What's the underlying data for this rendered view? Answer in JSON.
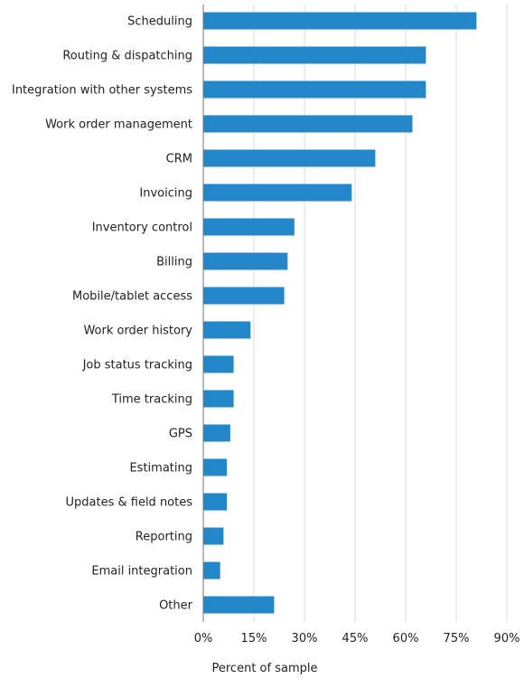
{
  "chart_data": {
    "type": "bar",
    "orientation": "horizontal",
    "categories": [
      "Scheduling",
      "Routing & dispatching",
      "Integration with other systems",
      "Work order management",
      "CRM",
      "Invoicing",
      "Inventory control",
      "Billing",
      "Mobile/tablet access",
      "Work order history",
      "Job status tracking",
      "Time tracking",
      "GPS",
      "Estimating",
      "Updates & field notes",
      "Reporting",
      "Email integration",
      "Other"
    ],
    "values": [
      81,
      66,
      66,
      62,
      51,
      44,
      27,
      25,
      24,
      14,
      9,
      9,
      8,
      7,
      7,
      6,
      5,
      21
    ],
    "xlabel": "Percent of sample",
    "ylabel": "",
    "xlim": [
      0,
      90
    ],
    "xticks": [
      0,
      15,
      30,
      45,
      60,
      75,
      90
    ],
    "tick_labels": [
      "0%",
      "15%",
      "30%",
      "45%",
      "60%",
      "75%",
      "90%"
    ],
    "grid": "vertical",
    "legend": "none",
    "bar_color": "#2487c9"
  }
}
